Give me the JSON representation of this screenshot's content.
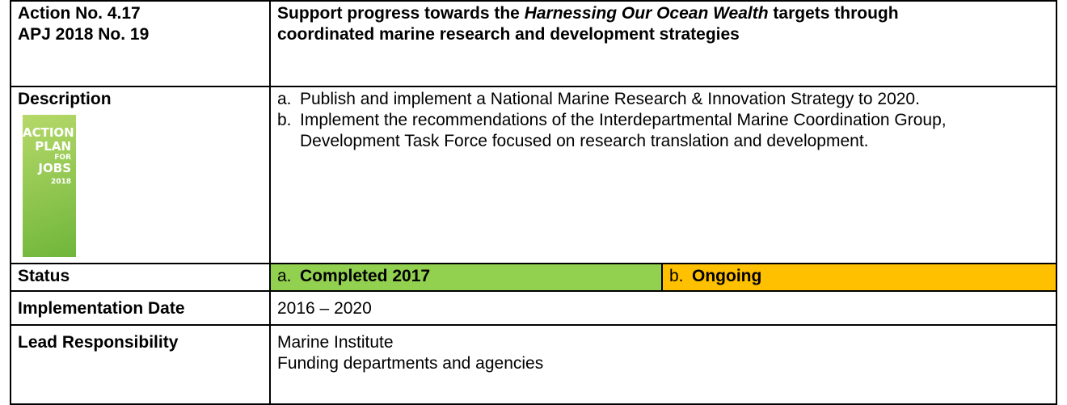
{
  "header": {
    "action_no": "Action No. 4.17",
    "apj_no": "APJ 2018 No. 19",
    "title": {
      "before": "Support progress towards the ",
      "italic": "Harnessing Our Ocean Wealth",
      "after": " targets through coordinated marine research and development strategies"
    }
  },
  "description": {
    "label": "Description",
    "cover": [
      "ACTION",
      "PLAN",
      "FOR",
      "JOBS",
      "2018"
    ],
    "items": [
      {
        "marker": "a.",
        "text": "Publish and implement a National Marine Research & Innovation Strategy to 2020."
      },
      {
        "marker": "b.",
        "text": "Implement the recommendations of the Interdepartmental Marine Coordination Group, Development Task Force focused on research translation and development."
      }
    ]
  },
  "status": {
    "label": "Status",
    "items": [
      {
        "marker": "a.",
        "text": "Completed 2017"
      },
      {
        "marker": "b.",
        "text": "Ongoing"
      }
    ]
  },
  "implementation_date": {
    "label": "Implementation Date",
    "value": "2016 – 2020"
  },
  "lead_responsibility": {
    "label": "Lead Responsibility",
    "values": [
      "Marine Institute",
      "Funding departments and agencies"
    ]
  }
}
